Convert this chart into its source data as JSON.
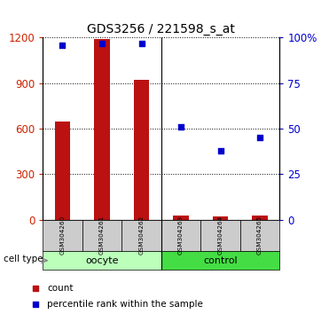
{
  "title": "GDS3256 / 221598_s_at",
  "samples": [
    "GSM304260",
    "GSM304261",
    "GSM304262",
    "GSM304263",
    "GSM304264",
    "GSM304265"
  ],
  "counts": [
    650,
    1190,
    920,
    30,
    20,
    30
  ],
  "percentile_ranks": [
    96,
    97,
    97,
    51,
    38,
    45
  ],
  "ylim_left": [
    0,
    1200
  ],
  "ylim_right": [
    0,
    100
  ],
  "yticks_left": [
    0,
    300,
    600,
    900,
    1200
  ],
  "yticks_right": [
    0,
    25,
    50,
    75,
    100
  ],
  "yticklabels_right": [
    "0",
    "25",
    "50",
    "75",
    "100%"
  ],
  "bar_color": "#BB1111",
  "dot_color": "#0000CC",
  "left_tick_color": "#CC2200",
  "right_tick_color": "#0000CC",
  "groups": [
    {
      "label": "oocyte",
      "indices": [
        0,
        1,
        2
      ],
      "color": "#BBFFBB"
    },
    {
      "label": "control",
      "indices": [
        3,
        4,
        5
      ],
      "color": "#44DD44"
    }
  ],
  "cell_type_label": "cell type",
  "legend_count_label": "count",
  "legend_percentile_label": "percentile rank within the sample",
  "bg_color": "#FFFFFF",
  "x_tick_bg": "#CCCCCC",
  "bar_width": 0.4
}
